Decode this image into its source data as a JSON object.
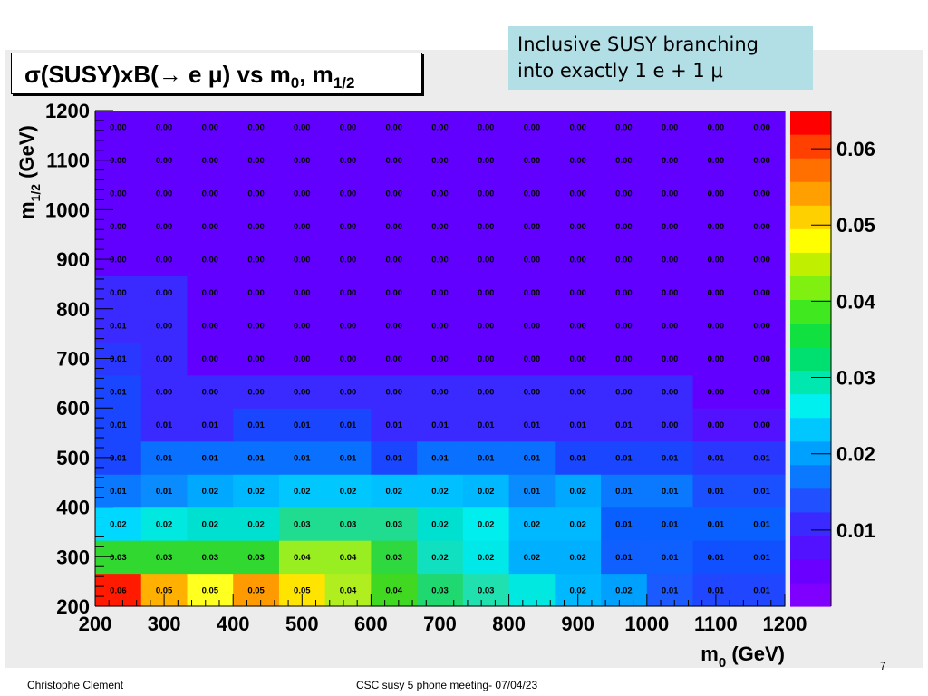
{
  "slide": {
    "note": "Inclusive SUSY branching\ninto exactly 1 e + 1 μ",
    "footer_author": "Christophe Clement",
    "footer_meeting": "CSC susy 5 phone meeting-  07/04/23",
    "slide_number": "7"
  },
  "chart_data": {
    "type": "heatmap",
    "title": "σ(SUSY)xB(→ e μ) vs m0, m1/2",
    "title_parts": {
      "lead": "σ(SUSY)xB(→ e μ) vs m",
      "sub1": "0",
      "mid": ", m",
      "sub2": "1/2"
    },
    "xlabel": "m0 (GeV)",
    "xlabel_parts": {
      "lead": "m",
      "sub": "0",
      "tail": " (GeV)"
    },
    "ylabel": "m1/2 (GeV)",
    "ylabel_parts": {
      "lead": "m",
      "sub": "1/2",
      "tail": " (GeV)"
    },
    "x_range": [
      200,
      1200
    ],
    "y_range": [
      200,
      1200
    ],
    "x_ticks": [
      200,
      300,
      400,
      500,
      600,
      700,
      800,
      900,
      1000,
      1100,
      1200
    ],
    "y_ticks": [
      200,
      300,
      400,
      500,
      600,
      700,
      800,
      900,
      1000,
      1100,
      1200
    ],
    "x_bin_count": 15,
    "y_bin_count": 15,
    "z_range": [
      0,
      0.065
    ],
    "z_ticks": [
      "0.01",
      "0.02",
      "0.03",
      "0.04",
      "0.05",
      "0.06"
    ],
    "colors": {
      "palette": [
        "#8000ff",
        "#6a00ff",
        "#5212ff",
        "#3a2aff",
        "#2050ff",
        "#0a78ff",
        "#00a0ff",
        "#00c8ff",
        "#00f0f0",
        "#00e8b0",
        "#00e070",
        "#10e040",
        "#40e820",
        "#80f010",
        "#c0f000",
        "#ffff00",
        "#ffd000",
        "#ffa000",
        "#ff7000",
        "#ff4000",
        "#ff0000"
      ]
    },
    "rows": [
      {
        "label": "row-200",
        "values": [
          0.06,
          0.05,
          0.05,
          0.05,
          0.05,
          0.04,
          0.04,
          0.03,
          0.03,
          null,
          0.02,
          0.02,
          0.01,
          0.01,
          0.01
        ],
        "colors": [
          "#ff1a00",
          "#ffb000",
          "#ffff20",
          "#ff9a00",
          "#ffe400",
          "#b0ee20",
          "#40d820",
          "#20d870",
          "#20e0b0",
          "#00e8e0",
          "#00b8ff",
          "#00a0ff",
          "#1a5aff",
          "#2046ff",
          "#2046ff"
        ]
      },
      {
        "label": "row-275",
        "values": [
          0.03,
          0.03,
          0.03,
          0.03,
          0.04,
          0.04,
          0.03,
          0.02,
          0.02,
          0.02,
          0.02,
          0.01,
          0.01,
          0.01,
          0.01
        ],
        "colors": [
          "#30d830",
          "#30d830",
          "#30d830",
          "#30d830",
          "#98ee20",
          "#98ee20",
          "#30d840",
          "#10e0c0",
          "#00e8e8",
          "#00b0ff",
          "#00b0ff",
          "#1060ff",
          "#1060ff",
          "#1050ff",
          "#1050ff"
        ]
      },
      {
        "label": "row-350",
        "values": [
          0.02,
          0.02,
          0.02,
          0.02,
          0.03,
          0.03,
          0.03,
          0.02,
          0.02,
          0.02,
          0.02,
          0.01,
          0.01,
          0.01,
          0.01
        ],
        "colors": [
          "#00d8ff",
          "#00e8e0",
          "#00e0d0",
          "#00e0d0",
          "#20dc90",
          "#20dc90",
          "#20dc90",
          "#00e0d0",
          "#00eeee",
          "#00b8ff",
          "#00b8ff",
          "#0a60ff",
          "#0a60ff",
          "#0a60ff",
          "#0a60ff"
        ]
      },
      {
        "label": "row-425",
        "values": [
          0.01,
          0.01,
          0.02,
          0.02,
          0.02,
          0.02,
          0.02,
          0.02,
          0.02,
          0.01,
          0.02,
          0.01,
          0.01,
          0.01,
          0.01
        ],
        "colors": [
          "#0a78ff",
          "#0a8cff",
          "#00a8ff",
          "#00b8ff",
          "#00c8ff",
          "#00c8ff",
          "#00c0ff",
          "#00c0ff",
          "#00b8ff",
          "#0a8cff",
          "#00a8ff",
          "#0a78ff",
          "#0a78ff",
          "#1a50ff",
          "#1a50ff"
        ]
      },
      {
        "label": "row-500",
        "values": [
          0.01,
          0.01,
          0.01,
          0.01,
          0.01,
          0.01,
          0.01,
          0.01,
          0.01,
          0.01,
          0.01,
          0.01,
          0.01,
          0.01,
          0.01
        ],
        "colors": [
          "#1a46ff",
          "#0a70ff",
          "#0a70ff",
          "#0a70ff",
          "#0a70ff",
          "#0a70ff",
          "#1a46ff",
          "#0a70ff",
          "#0a70ff",
          "#0a70ff",
          "#1a46ff",
          "#1a46ff",
          "#1a46ff",
          "#2a38ff",
          "#2a38ff"
        ]
      },
      {
        "label": "row-575",
        "values": [
          0.01,
          0.01,
          0.01,
          0.01,
          0.01,
          0.01,
          0.01,
          0.01,
          0.01,
          0.01,
          0.01,
          0.01,
          0.0,
          0.0,
          0.0
        ],
        "colors": [
          "#1a46ff",
          "#3a2aff",
          "#3a2aff",
          "#1a46ff",
          "#1a46ff",
          "#1a46ff",
          "#3a2aff",
          "#3a2aff",
          "#3a2aff",
          "#3a2aff",
          "#3a2aff",
          "#3a2aff",
          "#3a2aff",
          "#5212ff",
          "#5212ff"
        ]
      },
      {
        "label": "row-650",
        "values": [
          0.01,
          0.0,
          0.0,
          0.0,
          0.0,
          0.0,
          0.0,
          0.0,
          0.0,
          0.0,
          0.0,
          0.0,
          0.0,
          0.0,
          0.0
        ],
        "colors": [
          "#1a46ff",
          "#3a2aff",
          "#3a2aff",
          "#3a2aff",
          "#3a2aff",
          "#3a2aff",
          "#3a2aff",
          "#3a2aff",
          "#3a2aff",
          "#3a2aff",
          "#3a2aff",
          "#3a2aff",
          "#3a2aff",
          "#6200ff",
          "#6200ff"
        ]
      },
      {
        "label": "row-725",
        "values": [
          0.01,
          0.0,
          0.0,
          0.0,
          0.0,
          0.0,
          0.0,
          0.0,
          0.0,
          0.0,
          0.0,
          0.0,
          0.0,
          0.0,
          0.0
        ],
        "colors": [
          "#2a38ff",
          "#3a2aff",
          "#6200ff",
          "#6200ff",
          "#6200ff",
          "#6200ff",
          "#6200ff",
          "#6200ff",
          "#6200ff",
          "#6200ff",
          "#6200ff",
          "#6200ff",
          "#6200ff",
          "#6200ff",
          "#6200ff"
        ]
      },
      {
        "label": "row-800",
        "values": [
          0.01,
          0.0,
          0.0,
          0.0,
          0.0,
          0.0,
          0.0,
          0.0,
          0.0,
          0.0,
          0.0,
          0.0,
          0.0,
          0.0,
          0.0
        ],
        "colors": [
          "#3a2aff",
          "#3a2aff",
          "#6200ff",
          "#6200ff",
          "#6200ff",
          "#6200ff",
          "#6200ff",
          "#6200ff",
          "#6200ff",
          "#6200ff",
          "#6200ff",
          "#6200ff",
          "#6200ff",
          "#6200ff",
          "#6200ff"
        ]
      },
      {
        "label": "row-875",
        "values": [
          0.0,
          0.0,
          0.0,
          0.0,
          0.0,
          0.0,
          0.0,
          0.0,
          0.0,
          0.0,
          0.0,
          0.0,
          0.0,
          0.0,
          0.0
        ],
        "colors": [
          "#3a2aff",
          "#3a2aff",
          "#6200ff",
          "#6200ff",
          "#6200ff",
          "#6200ff",
          "#6200ff",
          "#6200ff",
          "#6200ff",
          "#6200ff",
          "#6200ff",
          "#6200ff",
          "#6200ff",
          "#6200ff",
          "#6200ff"
        ]
      },
      {
        "label": "row-950",
        "values": [
          0.0,
          0.0,
          0.0,
          0.0,
          0.0,
          0.0,
          0.0,
          0.0,
          0.0,
          0.0,
          0.0,
          0.0,
          0.0,
          0.0,
          0.0
        ],
        "colors": [
          "#6200ff",
          "#6200ff",
          "#6200ff",
          "#6200ff",
          "#6200ff",
          "#6200ff",
          "#6200ff",
          "#6200ff",
          "#6200ff",
          "#6200ff",
          "#6200ff",
          "#6200ff",
          "#6200ff",
          "#6200ff",
          "#6200ff"
        ]
      },
      {
        "label": "row-1025",
        "values": [
          0.0,
          0.0,
          0.0,
          0.0,
          0.0,
          0.0,
          0.0,
          0.0,
          0.0,
          0.0,
          0.0,
          0.0,
          0.0,
          0.0,
          0.0
        ],
        "colors": [
          "#6200ff",
          "#6200ff",
          "#6200ff",
          "#6200ff",
          "#6200ff",
          "#6200ff",
          "#6200ff",
          "#6200ff",
          "#6200ff",
          "#6200ff",
          "#6200ff",
          "#6200ff",
          "#6200ff",
          "#6200ff",
          "#6200ff"
        ]
      },
      {
        "label": "row-1100",
        "values": [
          0.0,
          0.0,
          0.0,
          0.0,
          0.0,
          0.0,
          0.0,
          0.0,
          0.0,
          0.0,
          0.0,
          0.0,
          0.0,
          0.0,
          0.0
        ],
        "colors": [
          "#6200ff",
          "#6200ff",
          "#6200ff",
          "#6200ff",
          "#6200ff",
          "#6200ff",
          "#6200ff",
          "#6200ff",
          "#6200ff",
          "#6200ff",
          "#6200ff",
          "#6200ff",
          "#6200ff",
          "#6200ff",
          "#6200ff"
        ]
      },
      {
        "label": "row-1175",
        "values": [
          0.0,
          0.0,
          0.0,
          0.0,
          0.0,
          0.0,
          0.0,
          0.0,
          0.0,
          0.0,
          0.0,
          0.0,
          0.0,
          0.0,
          0.0
        ],
        "colors": [
          "#6200ff",
          "#6200ff",
          "#6200ff",
          "#6200ff",
          "#6200ff",
          "#6200ff",
          "#6200ff",
          "#6200ff",
          "#6200ff",
          "#6200ff",
          "#6200ff",
          "#6200ff",
          "#6200ff",
          "#6200ff",
          "#6200ff"
        ]
      },
      {
        "label": "row-1250",
        "values": [
          0.0,
          0.0,
          0.0,
          0.0,
          0.0,
          0.0,
          0.0,
          0.0,
          0.0,
          0.0,
          0.0,
          0.0,
          0.0,
          0.0,
          0.0
        ],
        "colors": [
          "#6200ff",
          "#6200ff",
          "#6200ff",
          "#6200ff",
          "#6200ff",
          "#6200ff",
          "#6200ff",
          "#6200ff",
          "#6200ff",
          "#6200ff",
          "#6200ff",
          "#6200ff",
          "#6200ff",
          "#6200ff",
          "#6200ff"
        ]
      }
    ]
  }
}
